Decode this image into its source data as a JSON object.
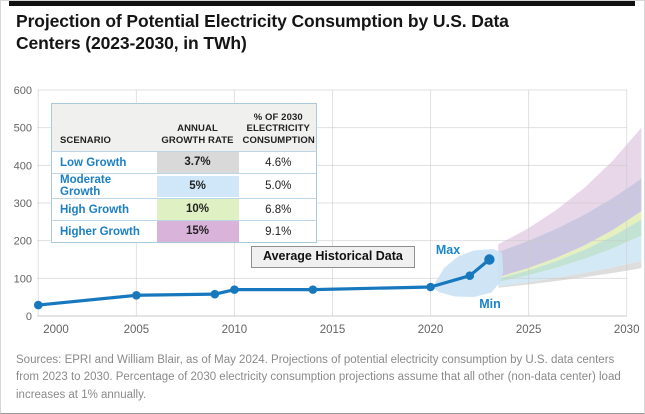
{
  "title": "Projection of Potential Electricity Consumption by U.S. Data\nCenters (2023-2030, in TWh)",
  "table": {
    "headers": [
      "SCENARIO",
      "ANNUAL GROWTH RATE",
      "% OF 2030 ELECTRICITY CONSUMPTION"
    ],
    "rows": [
      {
        "scenario": "Low Growth",
        "rate": "3.7%",
        "share": "4.6%",
        "color": "#d9d9d9"
      },
      {
        "scenario": "Moderate Growth",
        "rate": "5%",
        "share": "5.0%",
        "color": "#cfe7f8"
      },
      {
        "scenario": "High Growth",
        "rate": "10%",
        "share": "6.8%",
        "color": "#dff0c2"
      },
      {
        "scenario": "Higher Growth",
        "rate": "15%",
        "share": "9.1%",
        "color": "#d9b3d9"
      }
    ]
  },
  "annotations": {
    "avg_label": "Average Historical Data",
    "max_label": "Max",
    "min_label": "Min"
  },
  "sources": "Sources: EPRI and William Blair, as of May 2024. Projections of potential electricity consumption by U.S. data centers from 2023 to 2030. Percentage of 2030 electricity consumption projections assume that all other (non-data center) load increases at 1% annually.",
  "chart_data": {
    "type": "line",
    "title": "Projection of Potential Electricity Consumption by U.S. Data Centers (2023-2030, in TWh)",
    "unit": "TWh",
    "xlabel": "",
    "ylabel": "",
    "grid": true,
    "x_ticks": [
      2000,
      2005,
      2010,
      2015,
      2020,
      2025,
      2030
    ],
    "y_ticks": [
      0,
      100,
      200,
      300,
      400,
      500,
      600
    ],
    "xlim": [
      1999.9,
      2030.8
    ],
    "ylim": [
      0,
      600
    ],
    "historical": {
      "name": "Average Historical Data",
      "x": [
        2000,
        2005,
        2009,
        2010,
        2014,
        2020,
        2022,
        2023
      ],
      "y": [
        29,
        55,
        58,
        70,
        70,
        77,
        107,
        150
      ]
    },
    "minmax_band": {
      "name": "historical min-max range",
      "points": [
        [
          2020.1,
          77
        ],
        [
          2020.7,
          128
        ],
        [
          2021.4,
          158
        ],
        [
          2022.2,
          174
        ],
        [
          2023.2,
          178
        ],
        [
          2023.65,
          168
        ],
        [
          2023.7,
          120
        ],
        [
          2023.6,
          93
        ],
        [
          2023.1,
          62
        ],
        [
          2022.2,
          50
        ],
        [
          2021.2,
          52
        ],
        [
          2020.4,
          64
        ]
      ]
    },
    "proj_start_year": 2023.45,
    "proj_end_year": 2030.75,
    "projections": [
      {
        "name": "higher-growth-15pct",
        "color": "#e7d5e8",
        "start": [
          170,
          190
        ],
        "end": [
          365,
          500
        ]
      },
      {
        "name": "higher-moderate-overlap",
        "color": "#c9c4de",
        "start": [
          103,
          170
        ],
        "end": [
          278,
          365
        ]
      },
      {
        "name": "high-growth-10pct",
        "color": "#e4efba",
        "start": [
          99,
          103
        ],
        "end": [
          256,
          278
        ]
      },
      {
        "name": "high-moderate-overlap",
        "color": "#bfe1d1",
        "start": [
          90,
          99
        ],
        "end": [
          213,
          256
        ]
      },
      {
        "name": "moderate-growth-5pct",
        "color": "#d2e8f6",
        "start": [
          79,
          90
        ],
        "end": [
          146,
          213
        ]
      },
      {
        "name": "low-growth-3-7pct",
        "color": "#dbdbdb",
        "start": [
          75,
          79
        ],
        "end": [
          127,
          146
        ]
      }
    ],
    "colors": {
      "line": "#1878be",
      "annotation_text": "#1b85c8",
      "minmax_fill": "#cbe3f5",
      "grid": "#c8c8c8",
      "tick_text": "#636363"
    }
  }
}
